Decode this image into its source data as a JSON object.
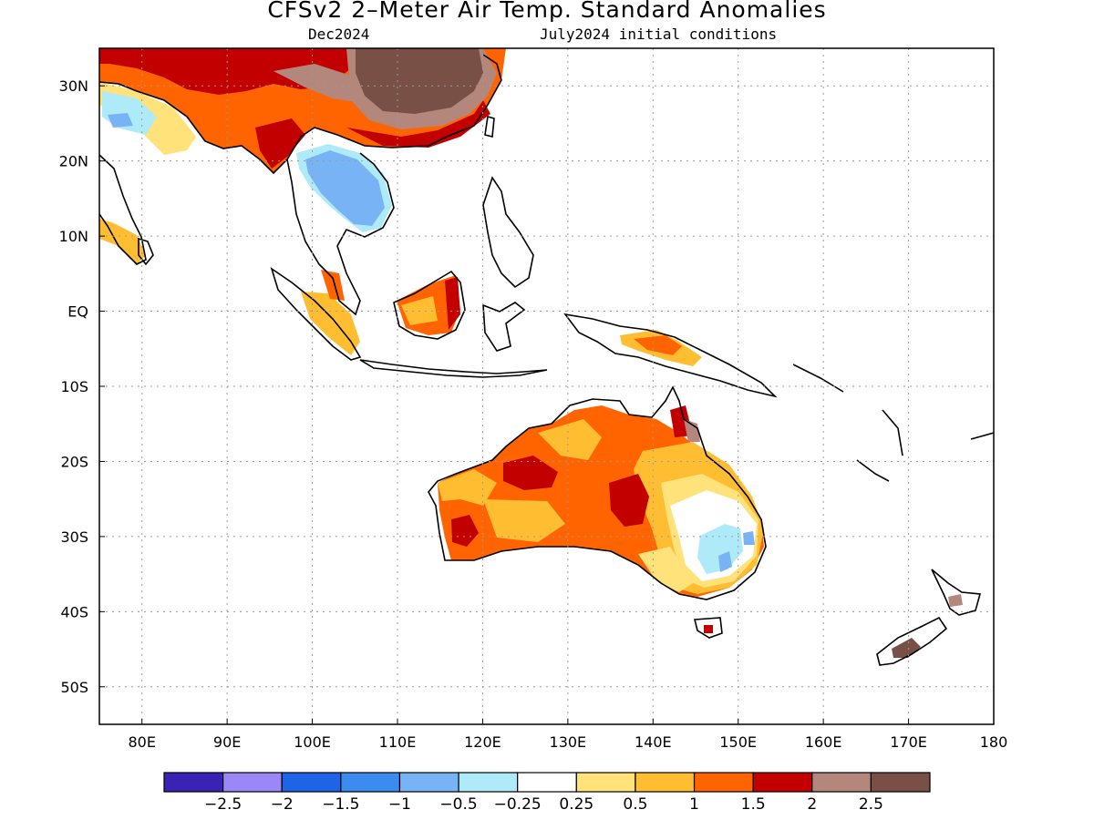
{
  "header": {
    "title": "CFSv2 2–Meter Air Temp. Standard Anomalies",
    "valid_month": "Dec2024",
    "init_conditions": "July2024 initial conditions"
  },
  "map": {
    "lon_range": [
      75,
      180
    ],
    "lat_range": [
      -55,
      35
    ],
    "lon_ticks": [
      {
        "value": 80,
        "label": "80E"
      },
      {
        "value": 90,
        "label": "90E"
      },
      {
        "value": 100,
        "label": "100E"
      },
      {
        "value": 110,
        "label": "110E"
      },
      {
        "value": 120,
        "label": "120E"
      },
      {
        "value": 130,
        "label": "130E"
      },
      {
        "value": 140,
        "label": "140E"
      },
      {
        "value": 150,
        "label": "150E"
      },
      {
        "value": 160,
        "label": "160E"
      },
      {
        "value": 170,
        "label": "170E"
      },
      {
        "value": 180,
        "label": "180"
      }
    ],
    "lat_ticks": [
      {
        "value": 30,
        "label": "30N"
      },
      {
        "value": 20,
        "label": "20N"
      },
      {
        "value": 10,
        "label": "10N"
      },
      {
        "value": 0,
        "label": "EQ"
      },
      {
        "value": -10,
        "label": "10S"
      },
      {
        "value": -20,
        "label": "20S"
      },
      {
        "value": -30,
        "label": "30S"
      },
      {
        "value": -40,
        "label": "40S"
      },
      {
        "value": -50,
        "label": "50S"
      }
    ],
    "gridlines": true
  },
  "legend": {
    "colors": [
      "#3a22b4",
      "#9b87f5",
      "#1e64e6",
      "#3c8cf0",
      "#78b4f5",
      "#aeeaf7",
      "#ffffff",
      "#ffe27a",
      "#ffbe32",
      "#ff6400",
      "#c30000",
      "#b4877d",
      "#785046"
    ],
    "labels": [
      "−2.5",
      "−2",
      "−1.5",
      "−1",
      "−0.5",
      "−0.25",
      "0.25",
      "0.5",
      "1",
      "1.5",
      "2",
      "2.5"
    ]
  },
  "chart_data": {
    "type": "heatmap",
    "variable": "2-Meter Air Temperature standardized anomaly",
    "bins": [
      {
        "range": "< -2.5",
        "color": "#3a22b4"
      },
      {
        "range": "-2.5 to -2",
        "color": "#9b87f5"
      },
      {
        "range": "-2 to -1.5",
        "color": "#1e64e6"
      },
      {
        "range": "-1.5 to -1",
        "color": "#3c8cf0"
      },
      {
        "range": "-1 to -0.5",
        "color": "#78b4f5"
      },
      {
        "range": "-0.5 to -0.25",
        "color": "#aeeaf7"
      },
      {
        "range": "-0.25 to 0.25",
        "color": "#ffffff"
      },
      {
        "range": "0.25 to 0.5",
        "color": "#ffe27a"
      },
      {
        "range": "0.5 to 1",
        "color": "#ffbe32"
      },
      {
        "range": "1 to 1.5",
        "color": "#ff6400"
      },
      {
        "range": "1.5 to 2",
        "color": "#c30000"
      },
      {
        "range": "2 to 2.5",
        "color": "#b4877d"
      },
      {
        "range": "> 2.5",
        "color": "#785046"
      }
    ],
    "regions": [
      {
        "region": "Northern India / Tibet",
        "anomaly_class": "1.5 to 2"
      },
      {
        "region": "Central / Eastern China",
        "anomaly_class": "> 2.5"
      },
      {
        "region": "South China coast",
        "anomaly_class": "1.5 to 2"
      },
      {
        "region": "Northwest India",
        "anomaly_class": "-0.5 to -0.25"
      },
      {
        "region": "Indochina (Thailand, Laos, Cambodia)",
        "anomaly_class": "-1.5 to -1"
      },
      {
        "region": "Borneo",
        "anomaly_class": "1 to 1.5"
      },
      {
        "region": "Sumatra / Malay Peninsula",
        "anomaly_class": "1 to 1.5"
      },
      {
        "region": "New Guinea",
        "anomaly_class": "1 to 1.5"
      },
      {
        "region": "Northern / Central Australia",
        "anomaly_class": "1 to 1.5"
      },
      {
        "region": "Western Australia",
        "anomaly_class": "1.5 to 2"
      },
      {
        "region": "Eastern Australia interior",
        "anomaly_class": "-0.25 to 0.25"
      },
      {
        "region": "Southeast Australia (NSW)",
        "anomaly_class": "-1 to -0.5"
      },
      {
        "region": "Cape York",
        "anomaly_class": "2 to 2.5"
      },
      {
        "region": "South Island, New Zealand",
        "anomaly_class": "> 2.5"
      },
      {
        "region": "Ocean",
        "anomaly_class": "no data"
      }
    ]
  }
}
